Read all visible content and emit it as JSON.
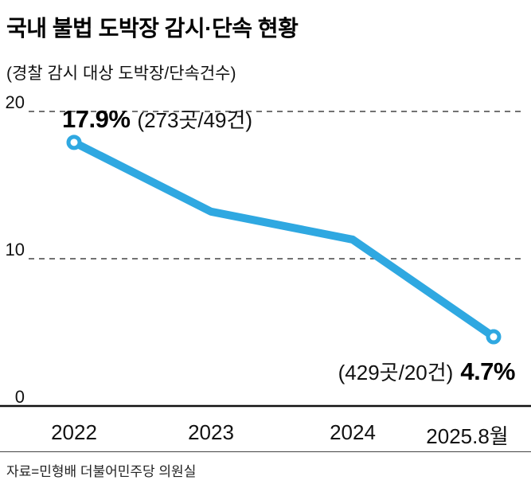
{
  "header": {
    "title": "국내 불법 도박장 감시·단속 현황",
    "subtitle": "(경찰 감시 대상 도박장/단속건수)"
  },
  "chart_data": {
    "type": "line",
    "categories": [
      "2022",
      "2023",
      "2024",
      "2025.8월"
    ],
    "values": [
      17.9,
      13.2,
      11.3,
      4.7
    ],
    "title": "국내 불법 도박장 감시·단속 현황",
    "xlabel": "",
    "ylabel": "",
    "ylim": [
      0,
      20
    ],
    "yticks": [
      0,
      10,
      20
    ],
    "grid": "dashed horizontal gridlines at 10 and 20, solid baseline at 0",
    "legend": "none",
    "line_color": "#2fa8e1",
    "marker_fill": "#ffffff",
    "annotations": {
      "first": {
        "value": "17.9%",
        "detail": "(273곳/49건)"
      },
      "last": {
        "detail": "(429곳/20건)",
        "value": "4.7%"
      }
    }
  },
  "source": "자료=민형배 더불어민주당 의원실"
}
